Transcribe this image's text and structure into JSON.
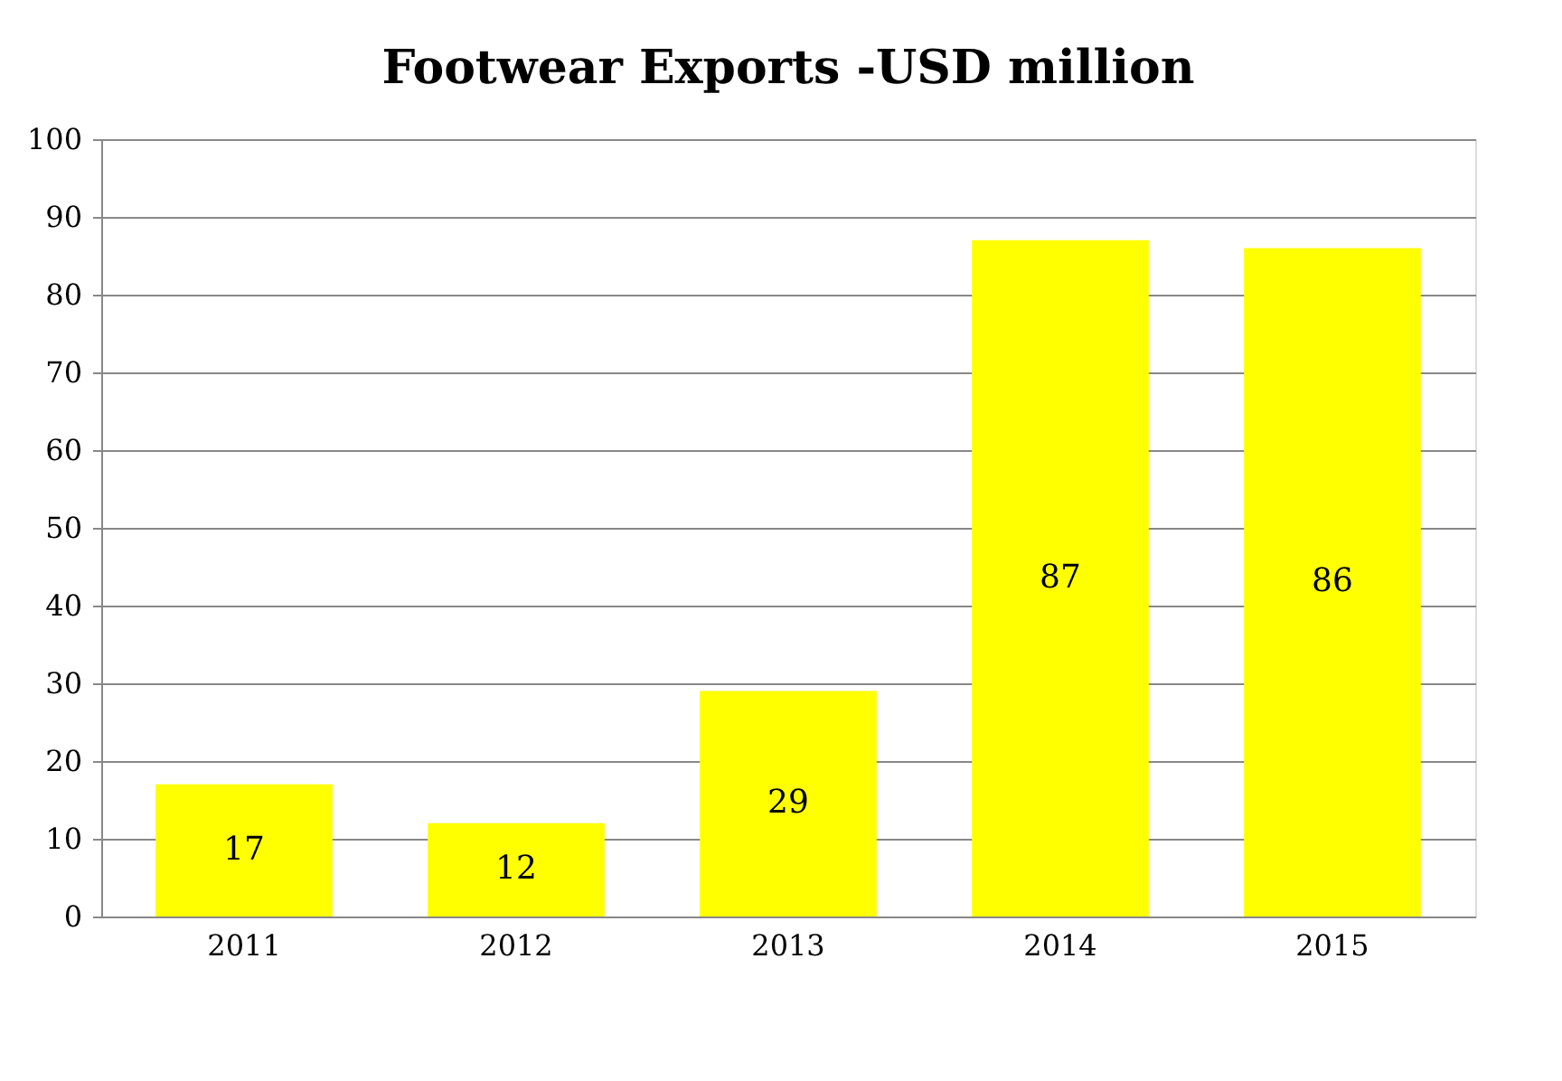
{
  "chart_data": {
    "type": "bar",
    "title": "Footwear Exports -USD million",
    "categories": [
      "2011",
      "2012",
      "2013",
      "2014",
      "2015"
    ],
    "values": [
      17,
      12,
      29,
      87,
      86
    ],
    "color": "#ffff00",
    "ylim": [
      0,
      100
    ],
    "yticks": [
      0,
      10,
      20,
      30,
      40,
      50,
      60,
      70,
      80,
      90,
      100
    ],
    "grid": "y",
    "data_labels": true
  }
}
